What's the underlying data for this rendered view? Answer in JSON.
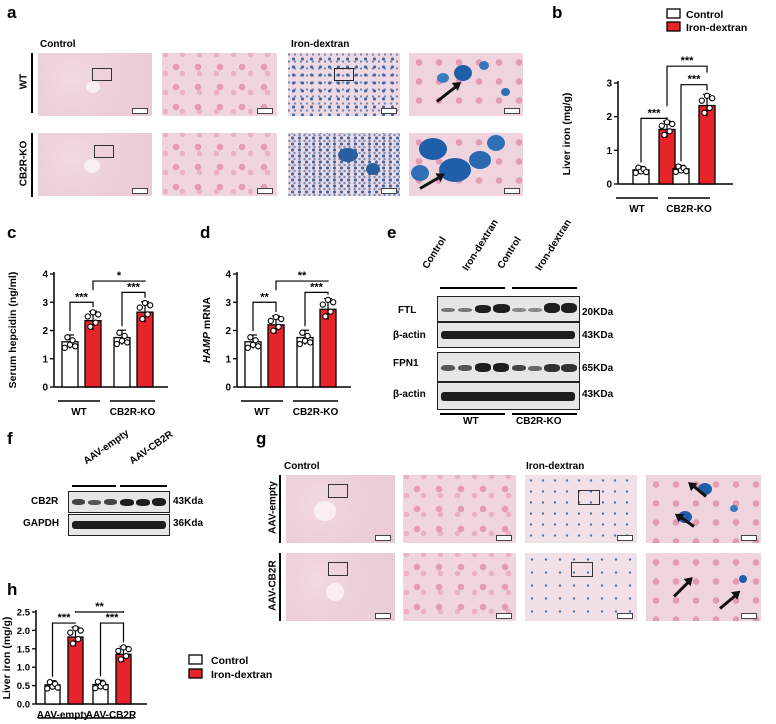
{
  "panels": {
    "a": {
      "letter": "a",
      "left_header": "Control",
      "right_header": "Iron-dextran",
      "rows": [
        "WT",
        "CB2R-KO"
      ]
    },
    "b": {
      "letter": "b"
    },
    "c": {
      "letter": "c"
    },
    "d": {
      "letter": "d"
    },
    "e": {
      "letter": "e",
      "lanes": [
        "Control",
        "Iron-dextran",
        "Control",
        "Iron-dextran"
      ],
      "rows": [
        {
          "protein": "FTL",
          "size": "20KDa"
        },
        {
          "protein": "β-actin",
          "size": "43KDa"
        },
        {
          "protein": "FPN1",
          "size": "65KDa"
        },
        {
          "protein": "β-actin",
          "size": "43KDa"
        }
      ],
      "groups": [
        "WT",
        "CB2R-KO"
      ]
    },
    "f": {
      "letter": "f",
      "lanes": [
        "AAV-empty",
        "AAV-CB2R"
      ],
      "rows": [
        {
          "protein": "CB2R",
          "size": "43Kda"
        },
        {
          "protein": "GAPDH",
          "size": "36Kda"
        }
      ]
    },
    "g": {
      "letter": "g",
      "left_header": "Control",
      "right_header": "Iron-dextran",
      "rows": [
        "AAV-empty",
        "AAV-CB2R"
      ]
    },
    "h": {
      "letter": "h"
    }
  },
  "legend": {
    "control": "Control",
    "iron": "Iron-dextran"
  },
  "colors": {
    "control": "#ffffff",
    "iron": "#e8242b",
    "stain_blue": "#1f5ea8"
  },
  "chart_data": [
    {
      "id": "b",
      "type": "bar",
      "ylabel": "Liver iron (mg/g)",
      "ylim": [
        0,
        3
      ],
      "yticks": [
        0,
        1,
        2,
        3
      ],
      "groups": [
        "WT",
        "CB2R-KO"
      ],
      "series": [
        {
          "name": "Control",
          "values": [
            0.42,
            0.45
          ]
        },
        {
          "name": "Iron-dextran",
          "values": [
            1.62,
            2.33
          ]
        }
      ],
      "sig": {
        "within": [
          "***",
          "***"
        ],
        "between": "***"
      }
    },
    {
      "id": "c",
      "type": "bar",
      "ylabel": "Serum hepcidin (ng/ml)",
      "ylim": [
        0,
        4
      ],
      "yticks": [
        0,
        1,
        2,
        3,
        4
      ],
      "groups": [
        "WT",
        "CB2R-KO"
      ],
      "series": [
        {
          "name": "Control",
          "values": [
            1.6,
            1.75
          ]
        },
        {
          "name": "Iron-dextran",
          "values": [
            2.35,
            2.65
          ]
        }
      ],
      "sig": {
        "within": [
          "***",
          "***"
        ],
        "between": "*"
      }
    },
    {
      "id": "d",
      "type": "bar",
      "ylabel_italic": "HAMP",
      "ylabel_rest": " mRNA",
      "ylim": [
        0,
        4
      ],
      "yticks": [
        0,
        1,
        2,
        3,
        4
      ],
      "groups": [
        "WT",
        "CB2R-KO"
      ],
      "series": [
        {
          "name": "Control",
          "values": [
            1.6,
            1.75
          ]
        },
        {
          "name": "Iron-dextran",
          "values": [
            2.2,
            2.75
          ]
        }
      ],
      "sig": {
        "within": [
          "**",
          "***"
        ],
        "between": "**"
      }
    },
    {
      "id": "h",
      "type": "bar",
      "ylabel": "Liver iron (mg/g)",
      "ylim": [
        0,
        2.5
      ],
      "yticks": [
        "0.0",
        "0.5",
        "1.0",
        "1.5",
        "2.0",
        "2.5"
      ],
      "groups": [
        "AAV-empty",
        "AAV-CB2R"
      ],
      "series": [
        {
          "name": "Control",
          "values": [
            0.52,
            0.53
          ]
        },
        {
          "name": "Iron-dextran",
          "values": [
            1.82,
            1.35
          ]
        }
      ],
      "sig": {
        "within": [
          "***",
          "***"
        ],
        "between": "**"
      }
    }
  ]
}
